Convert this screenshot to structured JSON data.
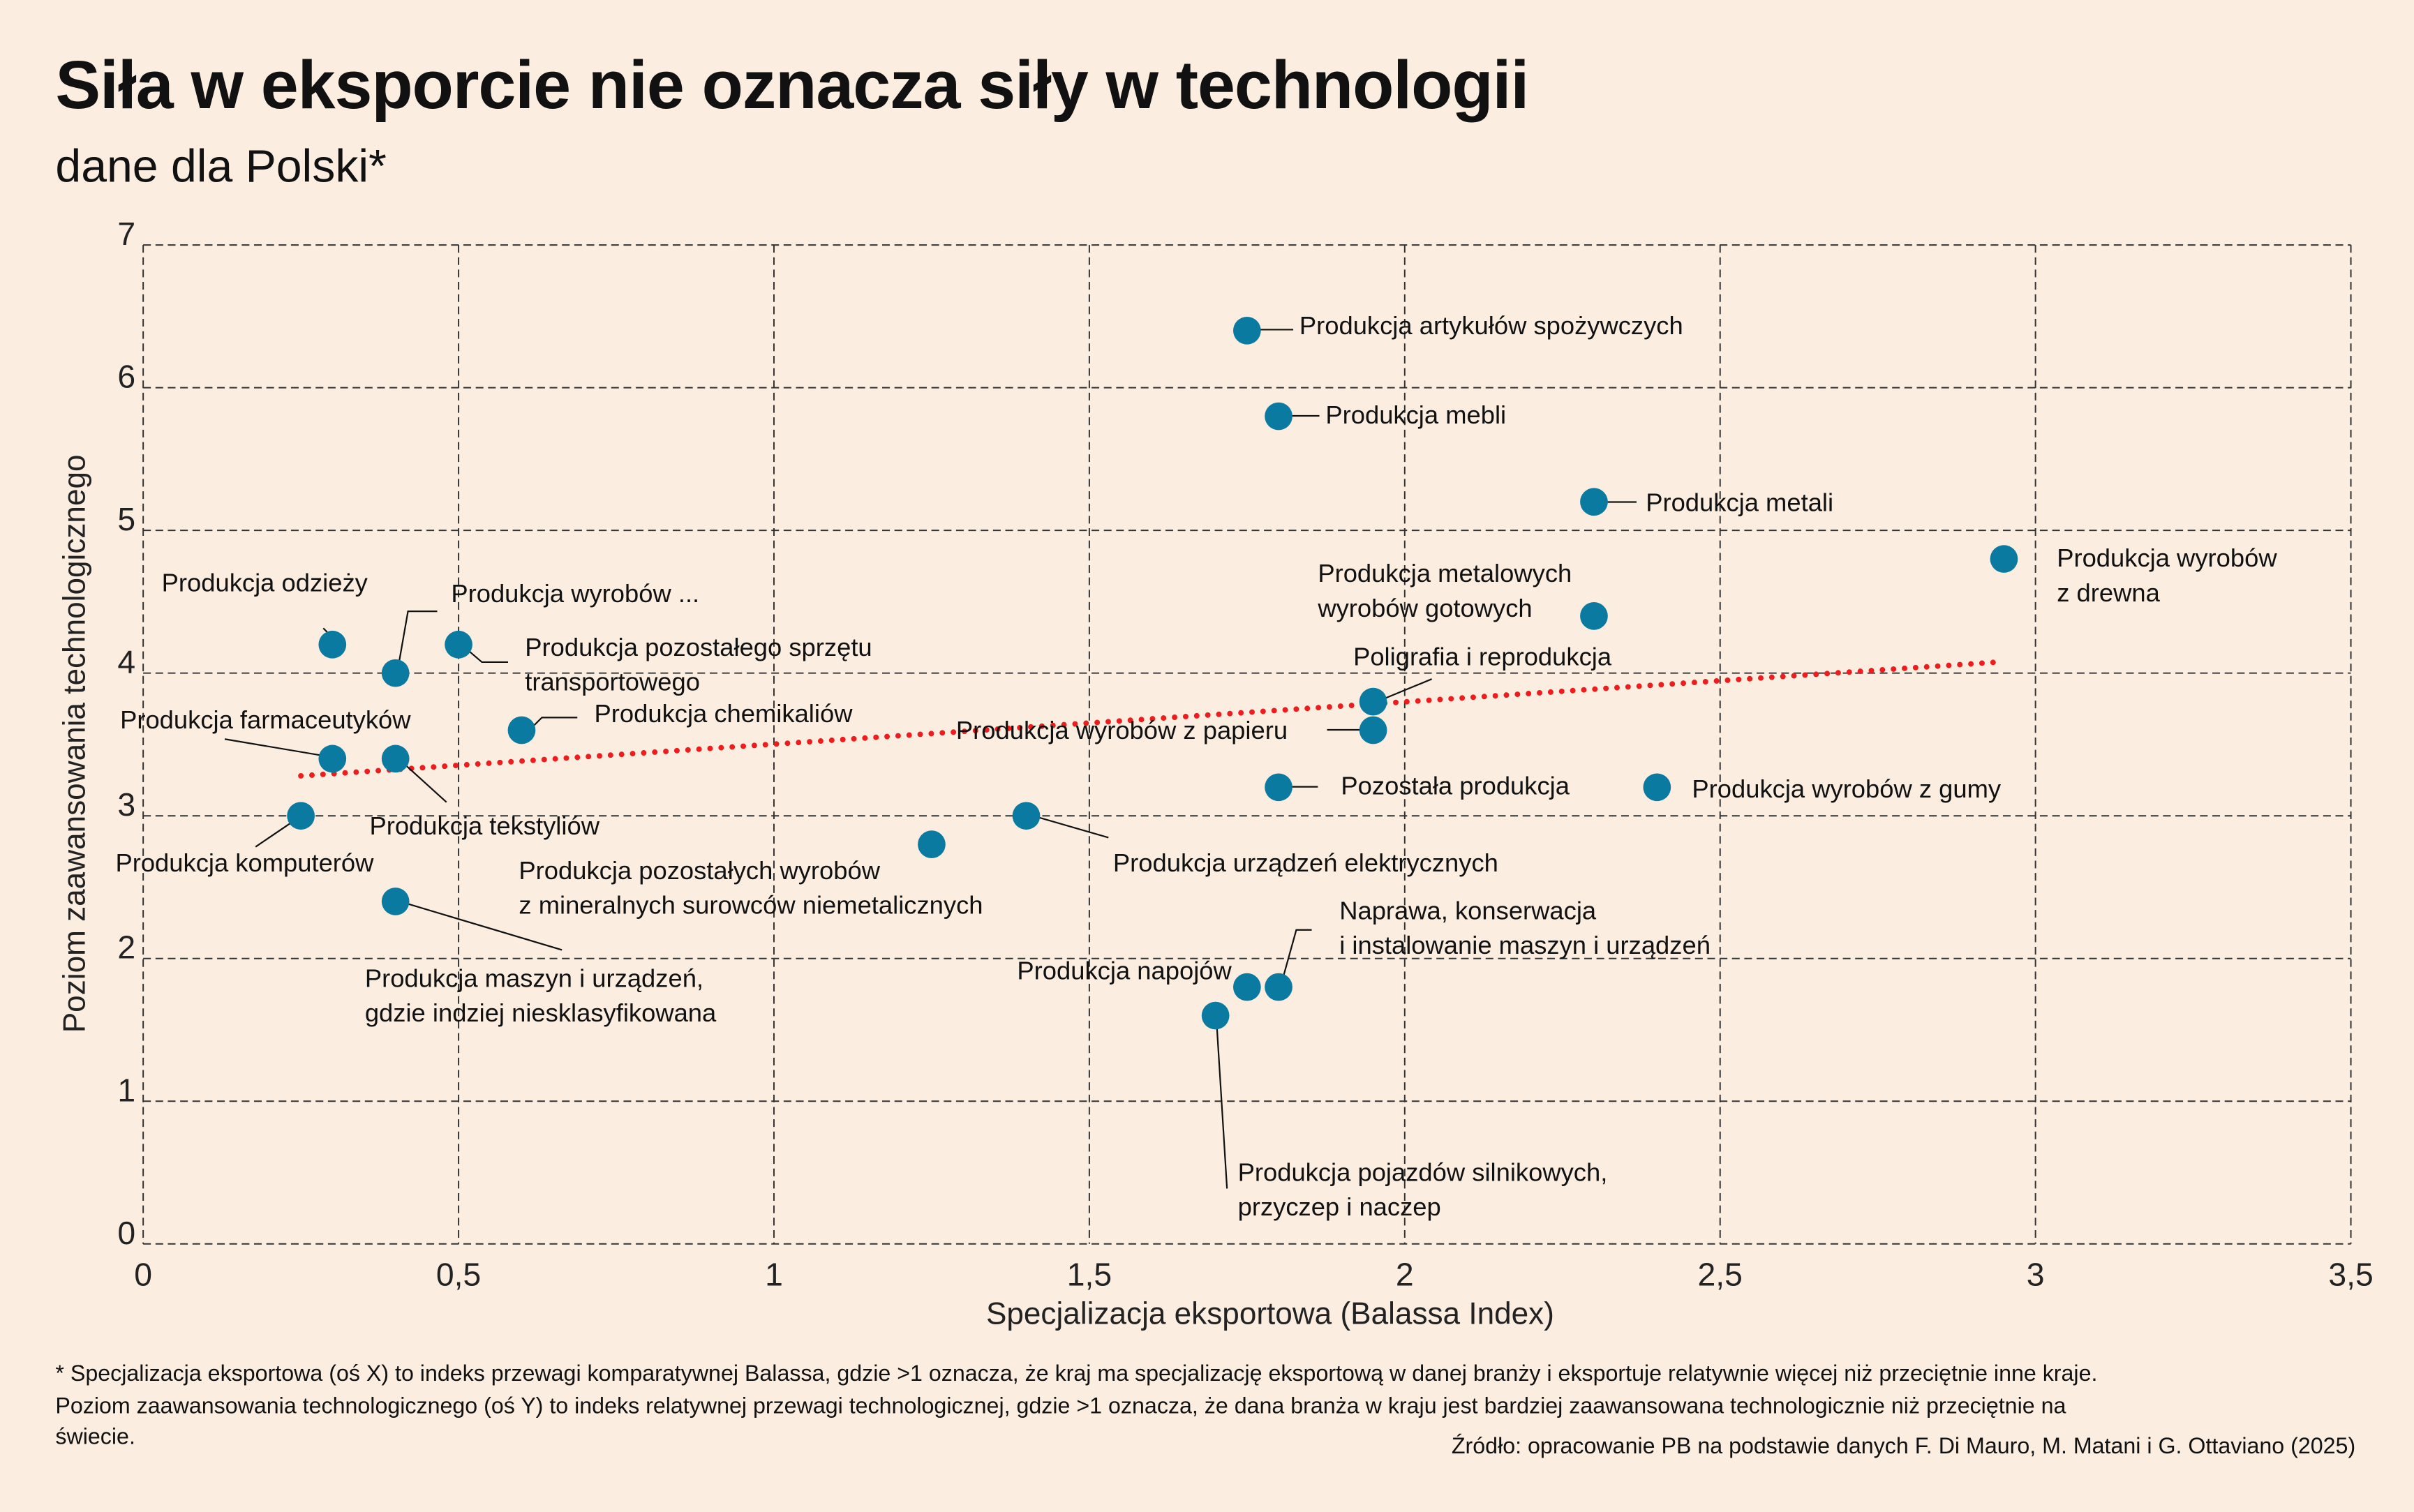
{
  "title": "Siła w eksporcie nie oznacza siły w technologii",
  "subtitle": "dane dla Polski*",
  "footnotes": [
    "* Specjalizacja eksportowa (oś X) to indeks przewagi komparatywnej Balassa, gdzie >1 oznacza, że kraj ma specjalizację eksportową w danej branży i eksportuje relatywnie więcej niż przeciętnie inne kraje.",
    "Poziom zaawansowania technologicznego (oś Y) to indeks relatywnej przewagi technologicznej, gdzie >1 oznacza, że dana branża w kraju jest bardziej zaawansowana technologicznie niż przeciętnie na",
    "świecie."
  ],
  "source": "Źródło: opracowanie PB na podstawie danych F. Di Mauro, M. Matani i G. Ottaviano (2025)",
  "colors": {
    "background": "#fbeee1",
    "points": "#0a7aa0",
    "trend": "#ee1c1c"
  },
  "chart_data": {
    "type": "scatter",
    "xlabel": "Specjalizacja eksportowa (Balassa Index)",
    "ylabel": "Poziom zaawansowania technologicznego",
    "xlim": [
      0,
      3.5
    ],
    "ylim": [
      0,
      7
    ],
    "grid": true,
    "x_ticks": [
      "0",
      "0,5",
      "1",
      "1,5",
      "2",
      "2,5",
      "3",
      "3,5"
    ],
    "y_ticks": [
      "0",
      "1",
      "2",
      "3",
      "4",
      "5",
      "6",
      "7"
    ],
    "trendline": {
      "type": "linear",
      "style": "dotted",
      "x": [
        0.25,
        2.95
      ],
      "y": [
        3.28,
        4.08
      ]
    },
    "points": [
      {
        "x": 1.75,
        "y": 6.4,
        "label": [
          "Produkcja artykułów spożywczych"
        ]
      },
      {
        "x": 1.8,
        "y": 5.8,
        "label": [
          "Produkcja mebli"
        ]
      },
      {
        "x": 2.3,
        "y": 5.2,
        "label": [
          "Produkcja metali"
        ]
      },
      {
        "x": 2.95,
        "y": 4.8,
        "label": [
          "Produkcja wyrobów",
          "z drewna"
        ]
      },
      {
        "x": 2.3,
        "y": 4.4,
        "label": [
          "Produkcja metalowych",
          "wyrobów gotowych"
        ]
      },
      {
        "x": 1.95,
        "y": 3.8,
        "label": [
          "Poligrafia i reprodukcja"
        ]
      },
      {
        "x": 1.95,
        "y": 3.6,
        "label": [
          "Produkcja wyrobów z papieru"
        ]
      },
      {
        "x": 1.8,
        "y": 3.2,
        "label": [
          "Pozostała produkcja"
        ]
      },
      {
        "x": 2.4,
        "y": 3.2,
        "label": [
          "Produkcja wyrobów z gumy"
        ]
      },
      {
        "x": 1.4,
        "y": 3.0,
        "label": [
          "Produkcja urządzeń elektrycznych"
        ]
      },
      {
        "x": 1.25,
        "y": 2.8,
        "label": [
          "Produkcja pozostałych wyrobów",
          "z mineralnych surowców niemetalicznych"
        ]
      },
      {
        "x": 1.8,
        "y": 1.8,
        "label": [
          "Naprawa, konserwacja",
          "i instalowanie maszyn i urządzeń"
        ]
      },
      {
        "x": 1.75,
        "y": 1.8,
        "label": [
          "Produkcja napojów"
        ]
      },
      {
        "x": 1.7,
        "y": 1.6,
        "label": [
          "Produkcja pojazdów silnikowych,",
          "przyczep i naczep"
        ]
      },
      {
        "x": 0.3,
        "y": 4.2,
        "label": [
          "Produkcja odzieży"
        ]
      },
      {
        "x": 0.4,
        "y": 4.0,
        "label": [
          "Produkcja wyrobów ..."
        ]
      },
      {
        "x": 0.5,
        "y": 4.2,
        "label": [
          "Produkcja pozostałego sprzętu",
          "transportowego"
        ]
      },
      {
        "x": 0.6,
        "y": 3.6,
        "label": [
          "Produkcja chemikaliów"
        ]
      },
      {
        "x": 0.3,
        "y": 3.4,
        "label": [
          "Produkcja farmaceutyków"
        ]
      },
      {
        "x": 0.4,
        "y": 3.4,
        "label": [
          "Produkcja tekstyliów"
        ]
      },
      {
        "x": 0.25,
        "y": 3.0,
        "label": [
          "Produkcja komputerów"
        ]
      },
      {
        "x": 0.4,
        "y": 2.4,
        "label": [
          "Produkcja maszyn i urządzeń,",
          "gdzie indziej niesklasyfikowana"
        ]
      }
    ]
  }
}
